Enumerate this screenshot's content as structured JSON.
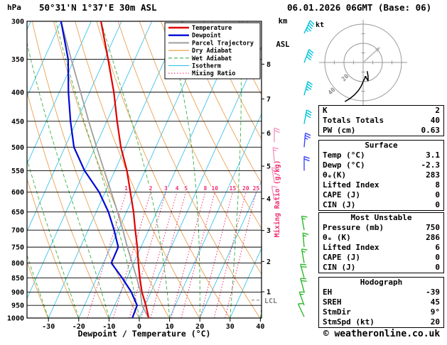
{
  "header": {
    "pressure_unit": "hPa",
    "station": "50°31'N 1°37'E 30m ASL",
    "km_label": "km",
    "asl_label": "ASL",
    "datetime": "06.01.2026 06GMT (Base: 06)"
  },
  "chart_data": {
    "type": "skewt-log-p-sounding",
    "title": "50°31'N 1°37'E 30m ASL",
    "datetime": "06.01.2026 06GMT (Base: 06)",
    "pressure_axis": {
      "unit": "hPa",
      "log": true,
      "ticks": [
        300,
        350,
        400,
        450,
        500,
        550,
        600,
        650,
        700,
        750,
        800,
        850,
        900,
        950,
        1000
      ]
    },
    "temp_axis": {
      "unit": "°C",
      "label": "Dewpoint / Temperature (°C)",
      "ticks": [
        -30,
        -20,
        -10,
        0,
        10,
        20,
        30,
        40
      ]
    },
    "km_axis": {
      "ticks": [
        1,
        2,
        3,
        4,
        5,
        6,
        7,
        8
      ],
      "pressures": [
        899,
        795,
        701,
        616,
        540,
        472,
        411,
        357
      ]
    },
    "lcl": {
      "label": "LCL",
      "pressure": 930
    },
    "mixing_ratio": {
      "label": "Mixing Ratio (g/kg)",
      "values": [
        1,
        2,
        3,
        4,
        5,
        8,
        10,
        15,
        20,
        25
      ],
      "top_pressure": 600,
      "color": "#ee2f72"
    },
    "sounding": {
      "pressure": [
        1000,
        950,
        900,
        850,
        800,
        750,
        700,
        650,
        600,
        550,
        500,
        450,
        400,
        350,
        300
      ],
      "temperature": [
        3.1,
        0.3,
        -3.0,
        -5.8,
        -8.5,
        -11.2,
        -14.4,
        -17.7,
        -21.7,
        -26.0,
        -31.5,
        -36.6,
        -42.0,
        -48.8,
        -56.8
      ],
      "dewpoint": [
        -2.3,
        -2.6,
        -6.5,
        -11.6,
        -17.4,
        -17.5,
        -21.4,
        -26.0,
        -32.0,
        -40.0,
        -47.0,
        -52.0,
        -57.0,
        -62.0,
        -70.0
      ],
      "parcel": [
        3.1,
        -1.0,
        -3.5,
        -6.8,
        -10.5,
        -14.5,
        -18.5,
        -23.0,
        -28.0,
        -33.5,
        -39.5,
        -46.0,
        -53.0,
        -61.0,
        -70.0
      ]
    },
    "winds": [
      {
        "p": 315,
        "dir": 25,
        "spd": 45,
        "color": "#00c3dc",
        "column": "main"
      },
      {
        "p": 355,
        "dir": 20,
        "spd": 40,
        "color": "#00c3dc",
        "column": "main"
      },
      {
        "p": 405,
        "dir": 15,
        "spd": 35,
        "color": "#00c3dc",
        "column": "main"
      },
      {
        "p": 455,
        "dir": 10,
        "spd": 30,
        "color": "#00c3dc",
        "column": "main"
      },
      {
        "p": 500,
        "dir": 5,
        "spd": 25,
        "color": "#3d46ff",
        "column": "main"
      },
      {
        "p": 550,
        "dir": 0,
        "spd": 20,
        "color": "#3d46ff",
        "column": "main"
      },
      {
        "p": 700,
        "dir": 350,
        "spd": 15,
        "color": "#2db82d",
        "column": "main"
      },
      {
        "p": 750,
        "dir": 355,
        "spd": 15,
        "color": "#2db82d",
        "column": "main"
      },
      {
        "p": 800,
        "dir": 350,
        "spd": 15,
        "color": "#2db82d",
        "column": "main"
      },
      {
        "p": 850,
        "dir": 345,
        "spd": 20,
        "color": "#2db82d",
        "column": "main"
      },
      {
        "p": 900,
        "dir": 345,
        "spd": 20,
        "color": "#2db82d",
        "column": "main"
      },
      {
        "p": 950,
        "dir": 340,
        "spd": 15,
        "color": "#2db82d",
        "column": "main"
      },
      {
        "p": 995,
        "dir": 335,
        "spd": 10,
        "color": "#2db82d",
        "column": "main"
      },
      {
        "p": 490,
        "dir": 0,
        "spd": 20,
        "color": "#f49ac1",
        "column": "side"
      },
      {
        "p": 530,
        "dir": 355,
        "spd": 15,
        "color": "#f49ac1",
        "column": "side"
      },
      {
        "p": 575,
        "dir": 350,
        "spd": 15,
        "color": "#f49ac1",
        "column": "side"
      },
      {
        "p": 620,
        "dir": 350,
        "spd": 10,
        "color": "#f49ac1",
        "column": "side"
      }
    ],
    "hodograph": {
      "unit": "kt",
      "rings": [
        20,
        40
      ]
    },
    "colors": {
      "temperature": "#e00000",
      "dewpoint": "#0008d6",
      "parcel": "#9e9e9e",
      "dry_adiabat": "#e8963c",
      "wet_adiabat": "#3cb043",
      "isotherm": "#27bdea",
      "mixing_ratio": "#ee2f72"
    }
  },
  "legend": {
    "items": [
      {
        "label": "Temperature",
        "color": "#e00000",
        "width": 2.4,
        "dash": ""
      },
      {
        "label": "Dewpoint",
        "color": "#0008d6",
        "width": 2.4,
        "dash": ""
      },
      {
        "label": "Parcel Trajectory",
        "color": "#9e9e9e",
        "width": 2.0,
        "dash": ""
      },
      {
        "label": "Dry Adiabat",
        "color": "#e8963c",
        "width": 1.1,
        "dash": ""
      },
      {
        "label": "Wet Adiabat",
        "color": "#3cb043",
        "width": 1.1,
        "dash": "5,3"
      },
      {
        "label": "Isotherm",
        "color": "#27bdea",
        "width": 1.1,
        "dash": ""
      },
      {
        "label": "Mixing Ratio",
        "color": "#ee2f72",
        "width": 1.1,
        "dash": "1.5,2.5"
      }
    ]
  },
  "panels": [
    {
      "header": null,
      "rows": [
        [
          "K",
          "2"
        ],
        [
          "Totals Totals",
          "40"
        ],
        [
          "PW (cm)",
          "0.63"
        ]
      ]
    },
    {
      "header": "Surface",
      "rows": [
        [
          "Temp (°C)",
          "3.1"
        ],
        [
          "Dewp (°C)",
          "-2.3"
        ],
        [
          "θₑ(K)",
          "283"
        ],
        [
          "Lifted Index",
          "8"
        ],
        [
          "CAPE (J)",
          "0"
        ],
        [
          "CIN (J)",
          "0"
        ]
      ]
    },
    {
      "header": "Most Unstable",
      "rows": [
        [
          "Pressure (mb)",
          "750"
        ],
        [
          "θₑ (K)",
          "286"
        ],
        [
          "Lifted Index",
          "6"
        ],
        [
          "CAPE (J)",
          "0"
        ],
        [
          "CIN (J)",
          "0"
        ]
      ]
    },
    {
      "header": "Hodograph",
      "rows": [
        [
          "EH",
          "-39"
        ],
        [
          "SREH",
          "45"
        ],
        [
          "StmDir",
          "9°"
        ],
        [
          "StmSpd (kt)",
          "20"
        ]
      ]
    }
  ],
  "footer": {
    "copyright": "© weatheronline.co.uk"
  }
}
